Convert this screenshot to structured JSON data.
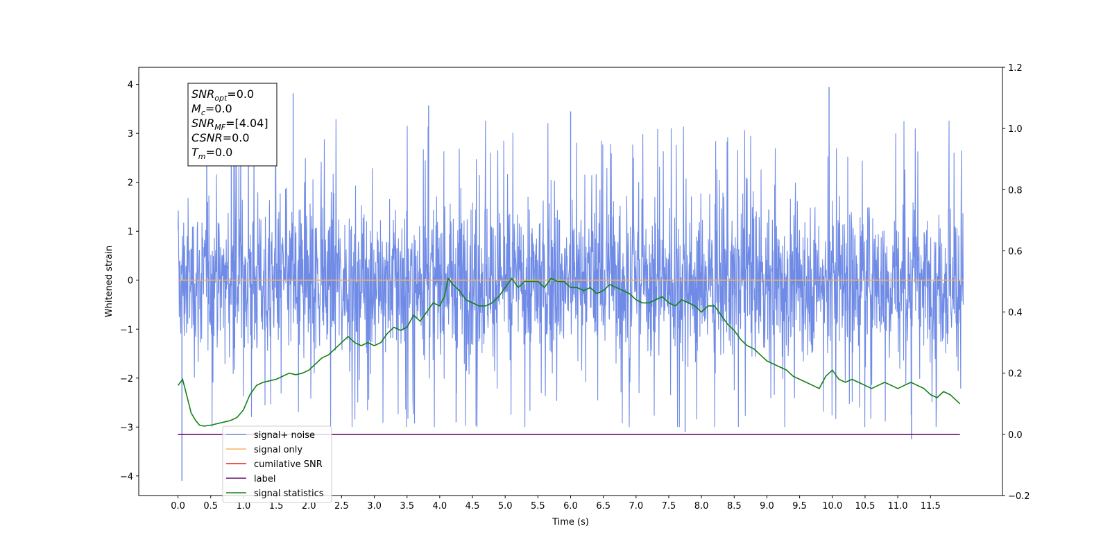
{
  "chart_data": {
    "type": "line",
    "xlabel": "Time (s)",
    "ylabel_left": "Whitened strain",
    "xlim": [
      -0.6,
      12.6
    ],
    "ylim_left": [
      -4.4,
      4.35
    ],
    "ylim_right": [
      -0.2,
      1.2
    ],
    "x_ticks": [
      0.0,
      0.5,
      1.0,
      1.5,
      2.0,
      2.5,
      3.0,
      3.5,
      4.0,
      4.5,
      5.0,
      5.5,
      6.0,
      6.5,
      7.0,
      7.5,
      8.0,
      8.5,
      9.0,
      9.5,
      10.0,
      10.5,
      11.0,
      11.5
    ],
    "x_tick_labels": [
      "0.0",
      "0.5",
      "1.0",
      "1.5",
      "2.0",
      "2.5",
      "3.0",
      "3.5",
      "4.0",
      "4.5",
      "5.0",
      "5.5",
      "6.0",
      "6.5",
      "7.0",
      "7.5",
      "8.0",
      "8.5",
      "9.0",
      "9.5",
      "10.0",
      "10.5",
      "11.0",
      "11.5"
    ],
    "y_ticks_left": [
      4,
      3,
      2,
      1,
      0,
      -1,
      -2,
      -3,
      -4
    ],
    "y_tick_labels_left": [
      "4",
      "3",
      "2",
      "1",
      "0",
      "−1",
      "−2",
      "−3",
      "−4"
    ],
    "y_ticks_right": [
      1.2,
      1.0,
      0.8,
      0.6,
      0.4,
      0.2,
      0.0,
      -0.2
    ],
    "y_tick_labels_right": [
      "1.2",
      "1.0",
      "0.8",
      "0.6",
      "0.4",
      "0.2",
      "0.0",
      "−0.2"
    ],
    "grid": false,
    "legend_position": "lower-left",
    "infobox": [
      {
        "base": "SNR",
        "sub": "opt",
        "value": "=0.0"
      },
      {
        "base": "M",
        "sub": "c",
        "value": "=0.0"
      },
      {
        "base": "SNR",
        "sub": "MF",
        "value": "=[4.04]"
      },
      {
        "base": "CSNR",
        "sub": "",
        "value": "=0.0"
      },
      {
        "base": "T",
        "sub": "m",
        "value": "=0.0"
      }
    ],
    "series": [
      {
        "name": "signal+ noise",
        "axis": "left",
        "color": "#6f8be6",
        "kind": "noise",
        "x_range": [
          0.0,
          12.0
        ],
        "y_core_range": [
          -1.5,
          1.5
        ],
        "spike_peaks": [
          {
            "x": 0.06,
            "y": -4.1
          },
          {
            "x": 1.76,
            "y": 3.82
          },
          {
            "x": 3.83,
            "y": 3.57
          },
          {
            "x": 9.95,
            "y": 3.95
          },
          {
            "x": 11.21,
            "y": -3.25
          },
          {
            "x": 6.0,
            "y": 3.45
          },
          {
            "x": 7.75,
            "y": -3.1
          },
          {
            "x": 4.25,
            "y": -2.9
          }
        ]
      },
      {
        "name": "signal only",
        "axis": "left",
        "color": "#f5b25f",
        "x": [
          0.0,
          12.0
        ],
        "y": [
          0.0,
          0.0
        ]
      },
      {
        "name": "cumilative SNR",
        "axis": "right",
        "color": "#e02020",
        "x": [],
        "y": []
      },
      {
        "name": "label",
        "axis": "right",
        "color": "#6a0a6a",
        "x": [
          0.0,
          11.95
        ],
        "y": [
          0.0,
          0.0
        ]
      },
      {
        "name": "signal statistics",
        "axis": "right",
        "color": "#128012",
        "x": [
          0.0,
          0.07,
          0.13,
          0.2,
          0.27,
          0.33,
          0.4,
          0.5,
          0.6,
          0.7,
          0.8,
          0.9,
          1.0,
          1.1,
          1.2,
          1.3,
          1.4,
          1.5,
          1.6,
          1.7,
          1.8,
          1.9,
          2.0,
          2.1,
          2.2,
          2.3,
          2.4,
          2.5,
          2.6,
          2.7,
          2.8,
          2.9,
          3.0,
          3.1,
          3.2,
          3.3,
          3.4,
          3.5,
          3.6,
          3.7,
          3.8,
          3.9,
          4.0,
          4.07,
          4.13,
          4.2,
          4.3,
          4.4,
          4.5,
          4.6,
          4.7,
          4.8,
          4.9,
          5.0,
          5.1,
          5.2,
          5.3,
          5.4,
          5.5,
          5.6,
          5.7,
          5.8,
          5.9,
          6.0,
          6.1,
          6.2,
          6.3,
          6.4,
          6.5,
          6.6,
          6.7,
          6.8,
          6.9,
          7.0,
          7.1,
          7.2,
          7.3,
          7.4,
          7.5,
          7.6,
          7.7,
          7.8,
          7.9,
          8.0,
          8.1,
          8.2,
          8.3,
          8.4,
          8.5,
          8.6,
          8.7,
          8.8,
          8.9,
          9.0,
          9.1,
          9.2,
          9.3,
          9.4,
          9.5,
          9.6,
          9.7,
          9.8,
          9.9,
          10.0,
          10.1,
          10.2,
          10.3,
          10.4,
          10.5,
          10.6,
          10.7,
          10.8,
          10.9,
          11.0,
          11.1,
          11.2,
          11.3,
          11.4,
          11.5,
          11.6,
          11.7,
          11.8,
          11.9,
          11.95
        ],
        "y": [
          0.16,
          0.18,
          0.13,
          0.07,
          0.045,
          0.03,
          0.027,
          0.03,
          0.035,
          0.04,
          0.045,
          0.055,
          0.08,
          0.13,
          0.16,
          0.17,
          0.175,
          0.18,
          0.19,
          0.2,
          0.195,
          0.2,
          0.21,
          0.23,
          0.25,
          0.26,
          0.28,
          0.3,
          0.32,
          0.3,
          0.29,
          0.3,
          0.29,
          0.3,
          0.33,
          0.35,
          0.34,
          0.35,
          0.39,
          0.37,
          0.4,
          0.43,
          0.42,
          0.45,
          0.51,
          0.49,
          0.47,
          0.44,
          0.43,
          0.42,
          0.42,
          0.43,
          0.45,
          0.48,
          0.51,
          0.48,
          0.5,
          0.5,
          0.5,
          0.48,
          0.51,
          0.5,
          0.5,
          0.48,
          0.48,
          0.47,
          0.48,
          0.46,
          0.47,
          0.49,
          0.48,
          0.47,
          0.46,
          0.44,
          0.43,
          0.43,
          0.44,
          0.45,
          0.43,
          0.42,
          0.44,
          0.43,
          0.42,
          0.4,
          0.42,
          0.42,
          0.39,
          0.36,
          0.34,
          0.31,
          0.29,
          0.28,
          0.26,
          0.24,
          0.23,
          0.22,
          0.21,
          0.19,
          0.18,
          0.17,
          0.16,
          0.15,
          0.19,
          0.21,
          0.18,
          0.17,
          0.18,
          0.17,
          0.16,
          0.15,
          0.16,
          0.17,
          0.16,
          0.15,
          0.16,
          0.17,
          0.16,
          0.15,
          0.13,
          0.12,
          0.14,
          0.13,
          0.11,
          0.1
        ]
      }
    ]
  }
}
